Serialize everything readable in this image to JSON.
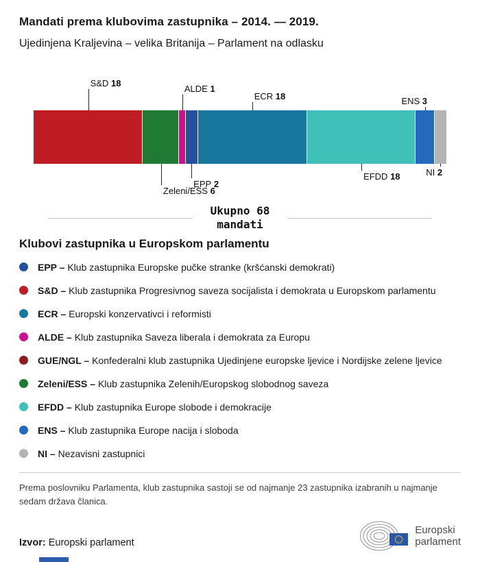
{
  "chart_data": {
    "type": "bar",
    "variant": "horizontal-stacked",
    "title": "Mandati prema klubovima zastupnika – 2014. — 2019.",
    "subtitle": "Ujedinjena Kraljevina – velika Britanija – Parlament na odlasku",
    "total": 68,
    "total_label_line1": "Ukupno 68",
    "total_label_line2": "mandati",
    "segments": [
      {
        "name": "S&D",
        "value": 18,
        "color": "#c01c23",
        "label_side": "above",
        "level": 3,
        "align": "left"
      },
      {
        "name": "Zeleni/ESS",
        "value": 6,
        "color": "#1f7a34",
        "label_side": "below",
        "level": 3,
        "align": "left"
      },
      {
        "name": "ALDE",
        "value": 1,
        "color": "#cd118c",
        "label_side": "above",
        "level": 2,
        "align": "left"
      },
      {
        "name": "EPP",
        "value": 2,
        "color": "#24519e",
        "label_side": "below",
        "level": 2,
        "align": "left"
      },
      {
        "name": "ECR",
        "value": 18,
        "color": "#17779c",
        "label_side": "above",
        "level": 1,
        "align": "left"
      },
      {
        "name": "EFDD",
        "value": 18,
        "color": "#40c0b8",
        "label_side": "below",
        "level": 1,
        "align": "left"
      },
      {
        "name": "ENS",
        "value": 3,
        "color": "#2569bd",
        "label_side": "above",
        "level": 0,
        "align": "right"
      },
      {
        "name": "NI",
        "value": 2,
        "color": "#b4b4b4",
        "label_side": "below",
        "level": 0,
        "align": "right"
      }
    ],
    "legend": {
      "heading": "Klubovi zastupnika u Europskom parlamentu",
      "items": [
        {
          "abbr": "EPP –",
          "desc": "Klub zastupnika Europske pučke stranke (kršćanski demokrati)",
          "color": "#24519e"
        },
        {
          "abbr": "S&D –",
          "desc": "Klub zastupnika Progresivnog saveza socijalista i demokrata u Europskom parlamentu",
          "color": "#c01c23"
        },
        {
          "abbr": "ECR –",
          "desc": "Europski konzervativci i reformisti",
          "color": "#17779c"
        },
        {
          "abbr": "ALDE –",
          "desc": "Klub zastupnika Saveza liberala i demokrata za Europu",
          "color": "#cd118c"
        },
        {
          "abbr": "GUE/NGL –",
          "desc": "Konfederalni klub zastupnika Ujedinjene europske ljevice i Nordijske zelene ljevice",
          "color": "#8a1e1e"
        },
        {
          "abbr": "Zeleni/ESS –",
          "desc": "Klub zastupnika Zelenih/Europskog slobodnog saveza",
          "color": "#1f7a34"
        },
        {
          "abbr": "EFDD –",
          "desc": "Klub zastupnika Europe slobode i demokracije",
          "color": "#40c0b8"
        },
        {
          "abbr": "ENS –",
          "desc": "Klub zastupnika Europe nacija i sloboda",
          "color": "#2569bd"
        },
        {
          "abbr": "NI –",
          "desc": "Nezavisni zastupnici",
          "color": "#b4b4b4"
        }
      ]
    }
  },
  "footnote": "Prema poslovniku Parlamenta, klub zastupnika sastoji se od najmanje 23 zastupnika izabranih u najmanje sedam država članica.",
  "footer": {
    "source_label": "Izvor:",
    "source_value": "Europski parlament",
    "logo_text_line1": "Europski",
    "logo_text_line2": "parlament"
  }
}
